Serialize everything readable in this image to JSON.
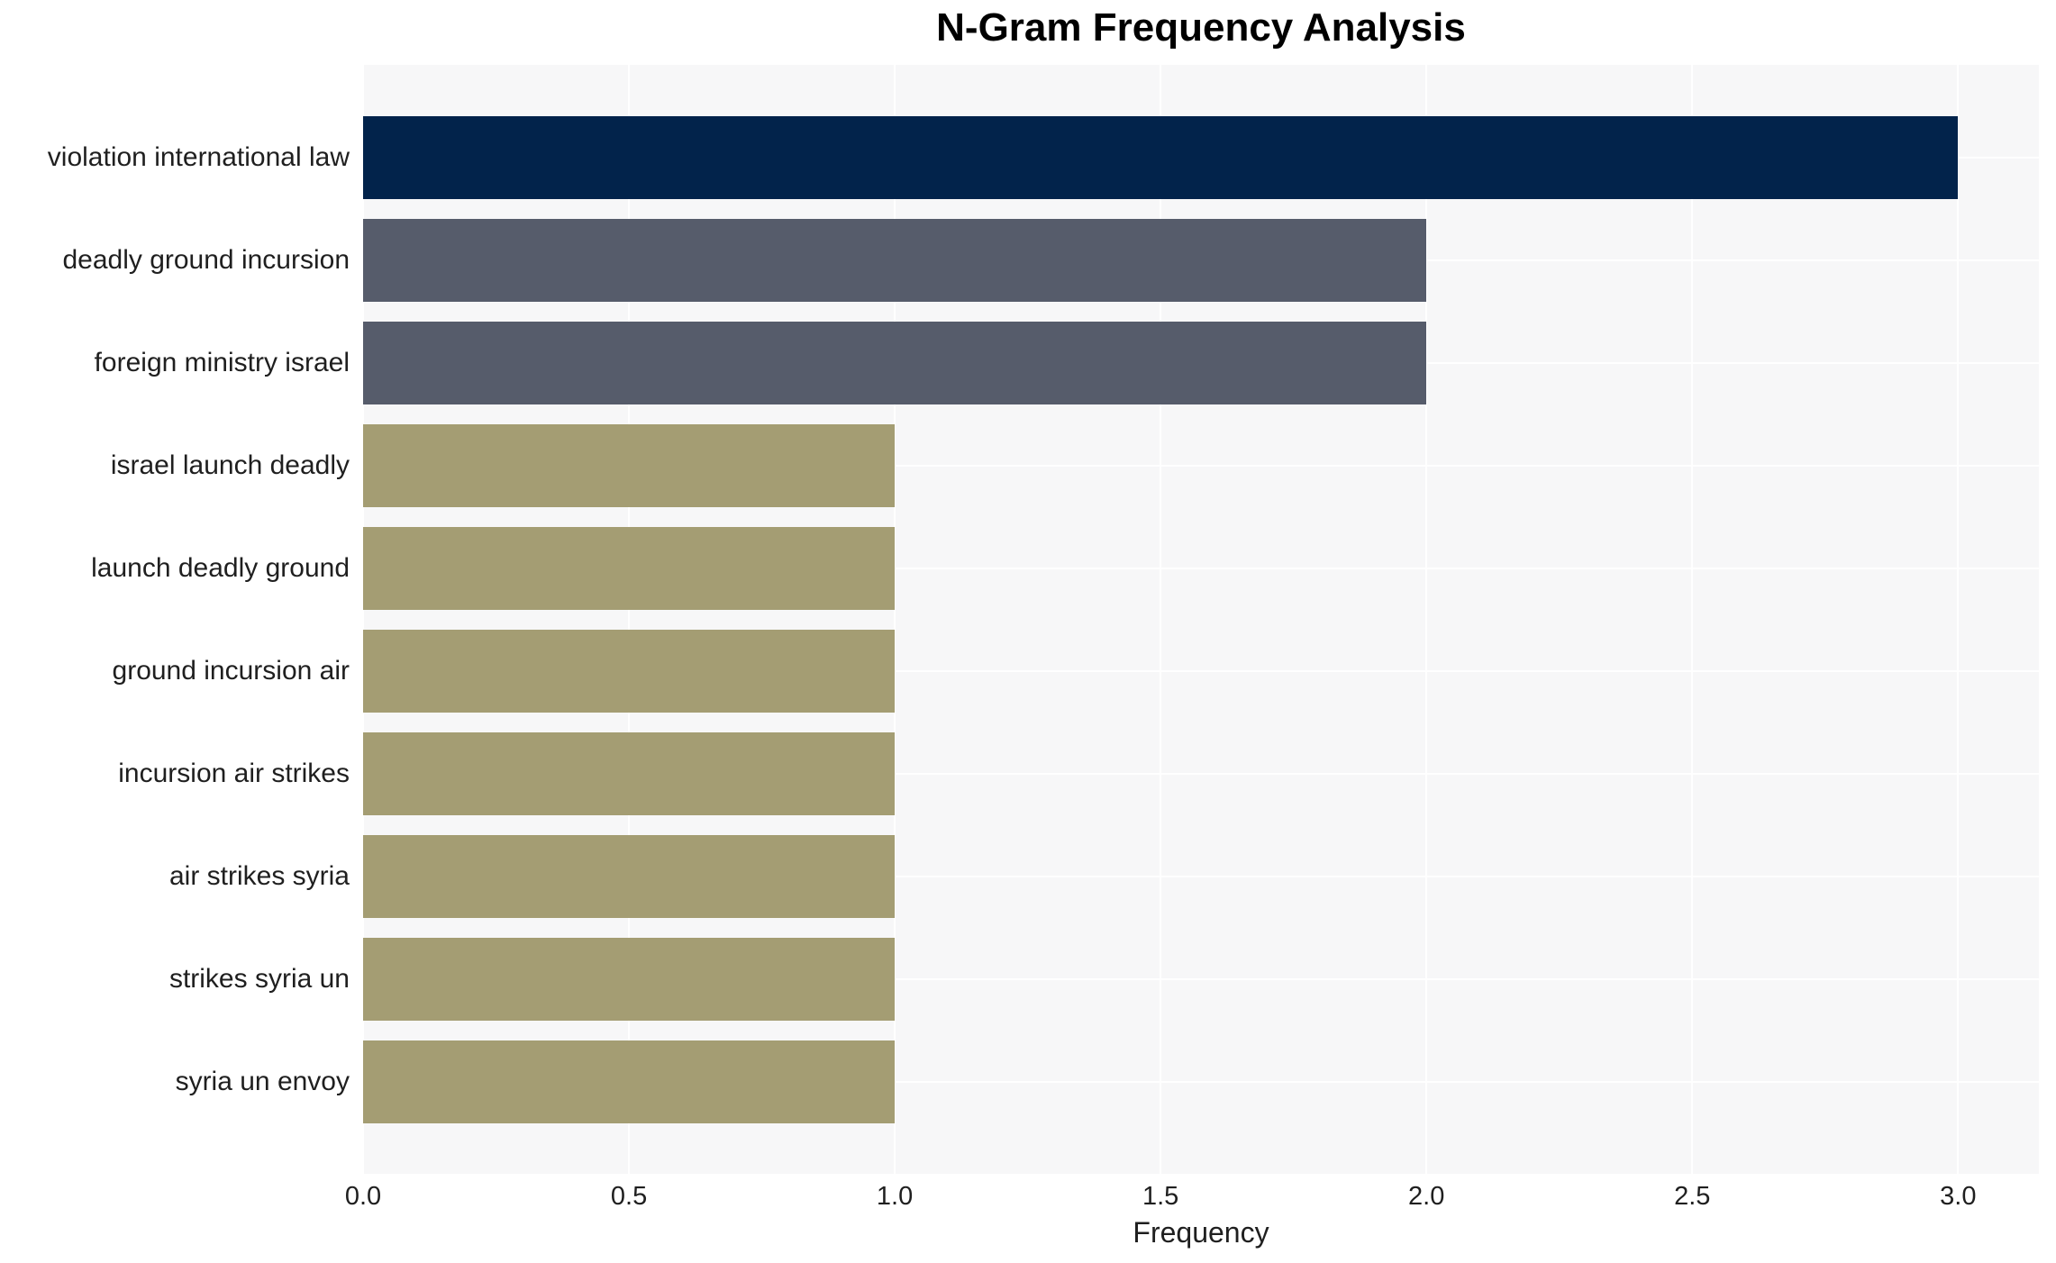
{
  "page": {
    "background": "#ffffff"
  },
  "chart_data": {
    "type": "bar",
    "orientation": "horizontal",
    "title": "N-Gram Frequency Analysis",
    "xlabel": "Frequency",
    "ylabel": "",
    "categories": [
      "violation international law",
      "deadly ground incursion",
      "foreign ministry israel",
      "israel launch deadly",
      "launch deadly ground",
      "ground incursion air",
      "incursion air strikes",
      "air strikes syria",
      "strikes syria un",
      "syria un envoy"
    ],
    "values": [
      3,
      2,
      2,
      1,
      1,
      1,
      1,
      1,
      1,
      1
    ],
    "bar_colors": [
      "#02234B",
      "#565C6B",
      "#565C6B",
      "#A49D73",
      "#A49D73",
      "#A49D73",
      "#A49D73",
      "#A49D73",
      "#A49D73",
      "#A49D73"
    ],
    "xlim": [
      0,
      3.152
    ],
    "xticks": [
      0,
      0.5,
      1,
      1.5,
      2,
      2.5,
      3
    ],
    "xtick_labels": [
      "0.0",
      "0.5",
      "1.0",
      "1.5",
      "2.0",
      "2.5",
      "3.0"
    ],
    "grid": true,
    "legend": false,
    "colors": {
      "panel_background": "#F7F7F8",
      "grid_line": "#FFFFFF",
      "text": "#1F1F1F",
      "title": "#000000"
    }
  }
}
